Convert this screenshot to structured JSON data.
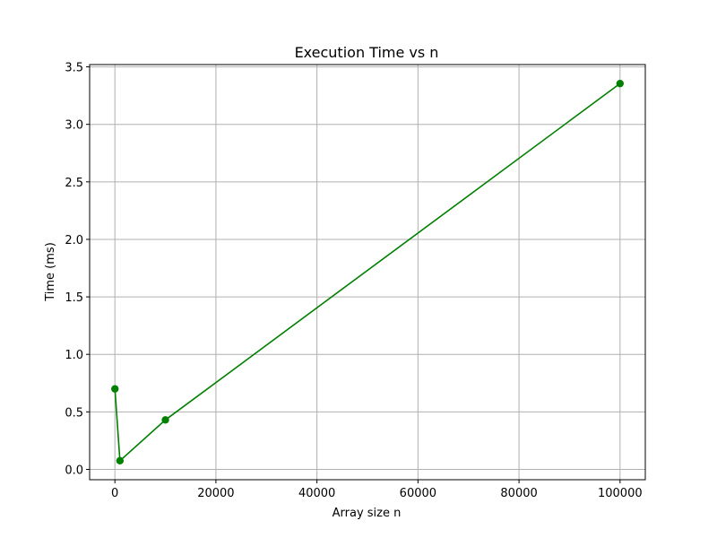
{
  "chart_data": {
    "type": "line",
    "title": "Execution Time vs n",
    "xlabel": "Array size n",
    "ylabel": "Time (ms)",
    "x": [
      10,
      1000,
      10000,
      100000
    ],
    "series": [
      {
        "values": [
          0.7,
          0.075,
          0.43,
          3.355
        ],
        "color": "#008000",
        "marker": "circle"
      }
    ],
    "xlim": [
      -5000,
      105000
    ],
    "ylim": [
      -0.09,
      3.52
    ],
    "xticks": [
      0,
      20000,
      40000,
      60000,
      80000,
      100000
    ],
    "xtick_labels": [
      "0",
      "20000",
      "40000",
      "60000",
      "80000",
      "100000"
    ],
    "yticks": [
      0.0,
      0.5,
      1.0,
      1.5,
      2.0,
      2.5,
      3.0,
      3.5
    ],
    "ytick_labels": [
      "0.0",
      "0.5",
      "1.0",
      "1.5",
      "2.0",
      "2.5",
      "3.0",
      "3.5"
    ],
    "grid": true,
    "grid_color": "#b0b0b0",
    "axis_color": "#000000"
  }
}
